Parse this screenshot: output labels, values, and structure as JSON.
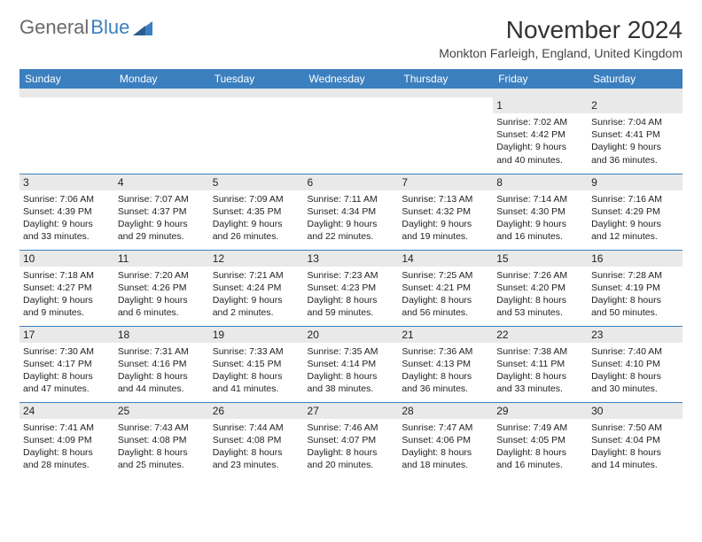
{
  "brand": {
    "part1": "General",
    "part2": "Blue"
  },
  "title": "November 2024",
  "location": "Monkton Farleigh, England, United Kingdom",
  "colors": {
    "header_bg": "#3b7fbf",
    "header_text": "#ffffff",
    "daynum_bg": "#e9e9e9",
    "divider": "#3b7fbf",
    "page_bg": "#ffffff",
    "text": "#222222",
    "logo_gray": "#6a6a6a",
    "logo_blue": "#3b7fbf"
  },
  "fonts": {
    "title_size": 28,
    "location_size": 14,
    "dow_size": 12,
    "daynum_size": 12,
    "details_size": 10.5
  },
  "dow": [
    "Sunday",
    "Monday",
    "Tuesday",
    "Wednesday",
    "Thursday",
    "Friday",
    "Saturday"
  ],
  "weeks": [
    [
      null,
      null,
      null,
      null,
      null,
      {
        "n": "1",
        "sr": "7:02 AM",
        "ss": "4:42 PM",
        "dl": "9 hours and 40 minutes."
      },
      {
        "n": "2",
        "sr": "7:04 AM",
        "ss": "4:41 PM",
        "dl": "9 hours and 36 minutes."
      }
    ],
    [
      {
        "n": "3",
        "sr": "7:06 AM",
        "ss": "4:39 PM",
        "dl": "9 hours and 33 minutes."
      },
      {
        "n": "4",
        "sr": "7:07 AM",
        "ss": "4:37 PM",
        "dl": "9 hours and 29 minutes."
      },
      {
        "n": "5",
        "sr": "7:09 AM",
        "ss": "4:35 PM",
        "dl": "9 hours and 26 minutes."
      },
      {
        "n": "6",
        "sr": "7:11 AM",
        "ss": "4:34 PM",
        "dl": "9 hours and 22 minutes."
      },
      {
        "n": "7",
        "sr": "7:13 AM",
        "ss": "4:32 PM",
        "dl": "9 hours and 19 minutes."
      },
      {
        "n": "8",
        "sr": "7:14 AM",
        "ss": "4:30 PM",
        "dl": "9 hours and 16 minutes."
      },
      {
        "n": "9",
        "sr": "7:16 AM",
        "ss": "4:29 PM",
        "dl": "9 hours and 12 minutes."
      }
    ],
    [
      {
        "n": "10",
        "sr": "7:18 AM",
        "ss": "4:27 PM",
        "dl": "9 hours and 9 minutes."
      },
      {
        "n": "11",
        "sr": "7:20 AM",
        "ss": "4:26 PM",
        "dl": "9 hours and 6 minutes."
      },
      {
        "n": "12",
        "sr": "7:21 AM",
        "ss": "4:24 PM",
        "dl": "9 hours and 2 minutes."
      },
      {
        "n": "13",
        "sr": "7:23 AM",
        "ss": "4:23 PM",
        "dl": "8 hours and 59 minutes."
      },
      {
        "n": "14",
        "sr": "7:25 AM",
        "ss": "4:21 PM",
        "dl": "8 hours and 56 minutes."
      },
      {
        "n": "15",
        "sr": "7:26 AM",
        "ss": "4:20 PM",
        "dl": "8 hours and 53 minutes."
      },
      {
        "n": "16",
        "sr": "7:28 AM",
        "ss": "4:19 PM",
        "dl": "8 hours and 50 minutes."
      }
    ],
    [
      {
        "n": "17",
        "sr": "7:30 AM",
        "ss": "4:17 PM",
        "dl": "8 hours and 47 minutes."
      },
      {
        "n": "18",
        "sr": "7:31 AM",
        "ss": "4:16 PM",
        "dl": "8 hours and 44 minutes."
      },
      {
        "n": "19",
        "sr": "7:33 AM",
        "ss": "4:15 PM",
        "dl": "8 hours and 41 minutes."
      },
      {
        "n": "20",
        "sr": "7:35 AM",
        "ss": "4:14 PM",
        "dl": "8 hours and 38 minutes."
      },
      {
        "n": "21",
        "sr": "7:36 AM",
        "ss": "4:13 PM",
        "dl": "8 hours and 36 minutes."
      },
      {
        "n": "22",
        "sr": "7:38 AM",
        "ss": "4:11 PM",
        "dl": "8 hours and 33 minutes."
      },
      {
        "n": "23",
        "sr": "7:40 AM",
        "ss": "4:10 PM",
        "dl": "8 hours and 30 minutes."
      }
    ],
    [
      {
        "n": "24",
        "sr": "7:41 AM",
        "ss": "4:09 PM",
        "dl": "8 hours and 28 minutes."
      },
      {
        "n": "25",
        "sr": "7:43 AM",
        "ss": "4:08 PM",
        "dl": "8 hours and 25 minutes."
      },
      {
        "n": "26",
        "sr": "7:44 AM",
        "ss": "4:08 PM",
        "dl": "8 hours and 23 minutes."
      },
      {
        "n": "27",
        "sr": "7:46 AM",
        "ss": "4:07 PM",
        "dl": "8 hours and 20 minutes."
      },
      {
        "n": "28",
        "sr": "7:47 AM",
        "ss": "4:06 PM",
        "dl": "8 hours and 18 minutes."
      },
      {
        "n": "29",
        "sr": "7:49 AM",
        "ss": "4:05 PM",
        "dl": "8 hours and 16 minutes."
      },
      {
        "n": "30",
        "sr": "7:50 AM",
        "ss": "4:04 PM",
        "dl": "8 hours and 14 minutes."
      }
    ]
  ],
  "labels": {
    "sunrise": "Sunrise:",
    "sunset": "Sunset:",
    "daylight": "Daylight:"
  }
}
